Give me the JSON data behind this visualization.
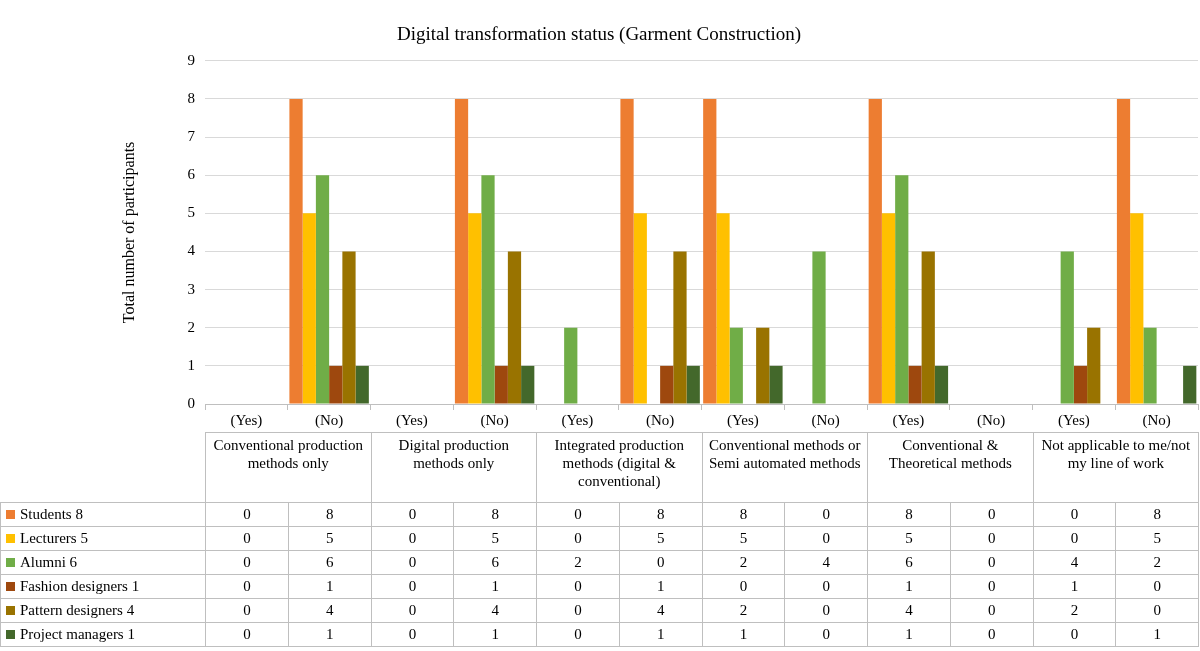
{
  "chart_data": {
    "type": "bar",
    "title": "Digital transformation status (Garment Construction)",
    "ylabel": "Total number of participants",
    "categories": [
      "(Yes)",
      "(No)",
      "(Yes)",
      "(No)",
      "(Yes)",
      "(No)",
      "(Yes)",
      "(No)",
      "(Yes)",
      "(No)",
      "(Yes)",
      "(No)"
    ],
    "annotations": [
      "Conventional production methods only",
      "Digital production methods only",
      "Integrated production methods (digital & conventional)",
      "Conventional methods or Semi automated methods",
      "Conventional & Theoretical methods",
      "Not applicable to me/not my line of work"
    ],
    "series": [
      {
        "name": "Students  8",
        "color": "#ed7d31",
        "values": [
          0,
          8,
          0,
          8,
          0,
          8,
          8,
          0,
          8,
          0,
          0,
          8
        ]
      },
      {
        "name": "Lecturers 5",
        "color": "#ffc000",
        "values": [
          0,
          5,
          0,
          5,
          0,
          5,
          5,
          0,
          5,
          0,
          0,
          5
        ]
      },
      {
        "name": "Alumni 6",
        "color": "#70ad47",
        "values": [
          0,
          6,
          0,
          6,
          2,
          0,
          2,
          4,
          6,
          0,
          4,
          2
        ]
      },
      {
        "name": "Fashion designers  1",
        "color": "#9e480e",
        "values": [
          0,
          1,
          0,
          1,
          0,
          1,
          0,
          0,
          1,
          0,
          1,
          0
        ]
      },
      {
        "name": "Pattern designers 4",
        "color": "#997300",
        "values": [
          0,
          4,
          0,
          4,
          0,
          4,
          2,
          0,
          4,
          0,
          2,
          0
        ]
      },
      {
        "name": "Project managers 1",
        "color": "#43682b",
        "values": [
          0,
          1,
          0,
          1,
          0,
          1,
          1,
          0,
          1,
          0,
          0,
          1
        ]
      }
    ],
    "ylim": [
      0,
      9
    ],
    "yticks": [
      0,
      1,
      2,
      3,
      4,
      5,
      6,
      7,
      8,
      9
    ],
    "grid": "y",
    "legend": "bottom left",
    "data_labels": true
  }
}
